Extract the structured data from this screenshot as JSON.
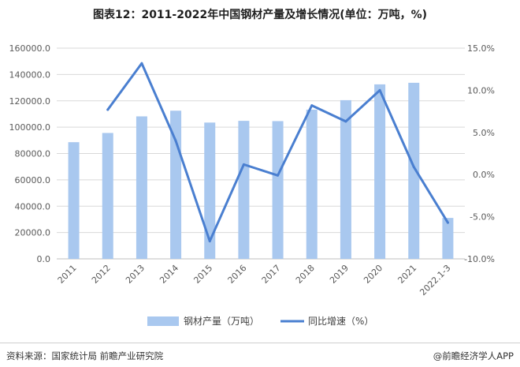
{
  "title": "图表12：2011-2022年中国钢材产量及增长情况(单位：万吨，%)",
  "footer": {
    "source": "资料来源：国家统计局 前瞻产业研究院",
    "brand": "@前瞻经济学人APP"
  },
  "colors": {
    "bar": "#a9c8ef",
    "line": "#4a7fd0",
    "grid": "#d9d9d9",
    "axis_text": "#595959"
  },
  "chart_data": {
    "type": "bar+line",
    "categories": [
      "2011",
      "2012",
      "2013",
      "2014",
      "2015",
      "2016",
      "2017",
      "2018",
      "2019",
      "2020",
      "2021",
      "2022.1-3"
    ],
    "series": [
      {
        "name": "钢材产量（万吨）",
        "type": "bar",
        "axis": "left",
        "values": [
          88600,
          95600,
          108200,
          112500,
          103500,
          104800,
          104600,
          113300,
          120500,
          132500,
          133700,
          31100
        ]
      },
      {
        "name": "同比增速（%）",
        "type": "line",
        "axis": "right",
        "values": [
          null,
          7.7,
          13.2,
          4.0,
          -7.9,
          1.2,
          -0.1,
          8.2,
          6.3,
          10.0,
          0.9,
          -5.7
        ]
      }
    ],
    "y_left": {
      "min": 0,
      "max": 160000,
      "ticks": [
        0,
        20000,
        40000,
        60000,
        80000,
        100000,
        120000,
        140000,
        160000
      ],
      "tick_labels": [
        "0.0",
        "20000.0",
        "40000.0",
        "60000.0",
        "80000.0",
        "100000.0",
        "120000.0",
        "140000.0",
        "160000.0"
      ]
    },
    "y_right": {
      "min": -10,
      "max": 15,
      "ticks": [
        -10,
        -5,
        0,
        5,
        10,
        15
      ],
      "tick_labels": [
        "-10.0%",
        "-5.0%",
        "0.0%",
        "5.0%",
        "10.0%",
        "15.0%"
      ]
    },
    "grid": true,
    "legend_position": "bottom"
  }
}
